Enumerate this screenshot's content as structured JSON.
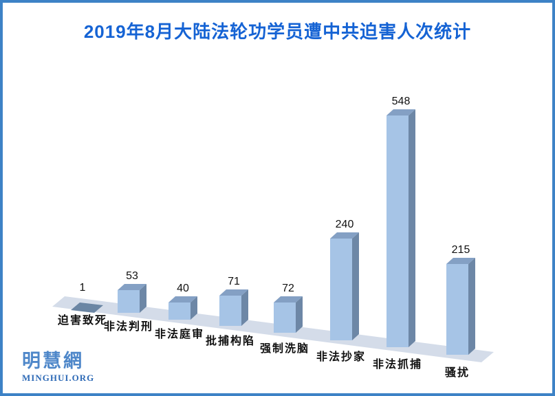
{
  "frame": {
    "border_color": "#3d82c6",
    "background": "#ffffff"
  },
  "title": {
    "text": "2019年8月大陆法轮功学员遭中共迫害人次统计",
    "color": "#1563d4"
  },
  "chart_data": {
    "type": "bar",
    "style": "3d-perspective",
    "title": "2019年8月大陆法轮功学员遭中共迫害人次统计",
    "categories": [
      "迫害致死",
      "非法判刑",
      "非法庭审",
      "批捕构陷",
      "强制洗脑",
      "非法抄家",
      "非法抓捕",
      "骚扰"
    ],
    "values": [
      1,
      53,
      40,
      71,
      72,
      240,
      548,
      215
    ],
    "xlabel": "",
    "ylabel": "",
    "data_labels": true,
    "axes_visible": false,
    "gridlines": false,
    "legend": "none",
    "colors": {
      "bar_front": "#a6c4e6",
      "bar_top": "#84a0c4",
      "bar_side": "#6d87a6",
      "flat_bar_tile": "#6b86a4",
      "floor": "#d4dce9",
      "label_text": "#111111"
    }
  },
  "logo": {
    "text": "明慧網",
    "subtext": "MINGHUI.ORG",
    "text_color": "#4e87c9",
    "subtext_color": "#2e6ab6"
  }
}
